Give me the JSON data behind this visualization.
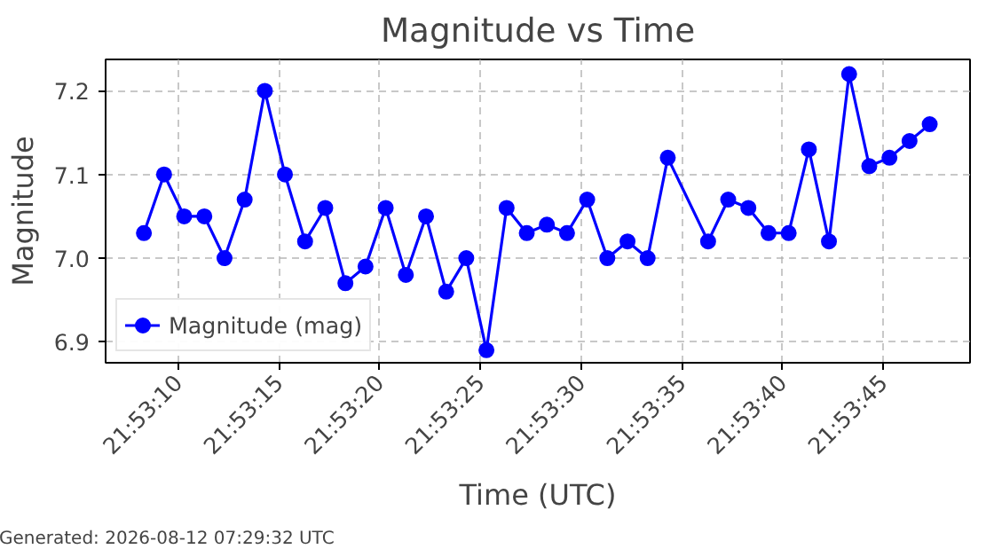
{
  "chart_data": {
    "type": "line",
    "title": "Magnitude vs Time",
    "xlabel": "Time (UTC)",
    "ylabel": "Magnitude",
    "x": [
      21.885639,
      21.885917,
      21.886194,
      21.886472,
      21.88675,
      21.887028,
      21.887306,
      21.887583,
      21.887861,
      21.888139,
      21.888417,
      21.888694,
      21.888972,
      21.88925,
      21.889528,
      21.889806,
      21.890083,
      21.890361,
      21.890639,
      21.890917,
      21.891194,
      21.891472,
      21.89175,
      21.892028,
      21.892306,
      21.892583,
      21.892861,
      21.893417,
      21.893694,
      21.893972,
      21.89425,
      21.894528,
      21.894806,
      21.895083,
      21.895361,
      21.895639,
      21.895917,
      21.896194,
      21.896472
    ],
    "series": [
      {
        "name": "Magnitude (mag)",
        "color": "#0000ff",
        "values": [
          7.03,
          7.1,
          7.05,
          7.05,
          7.0,
          7.07,
          7.2,
          7.1,
          7.02,
          7.06,
          6.97,
          6.99,
          7.06,
          6.98,
          7.05,
          6.96,
          7.0,
          6.89,
          7.06,
          7.03,
          7.04,
          7.03,
          7.07,
          7.0,
          7.02,
          7.0,
          7.12,
          7.02,
          7.07,
          7.06,
          7.03,
          7.03,
          7.13,
          7.02,
          7.22,
          7.11,
          7.12,
          7.14,
          7.16
        ]
      }
    ],
    "xlim": [
      21.885111,
      21.897028
    ],
    "ylim": [
      6.875,
      7.2375
    ],
    "xticks": [
      {
        "value": 21.886111,
        "label": "21:53:10"
      },
      {
        "value": 21.8875,
        "label": "21:53:15"
      },
      {
        "value": 21.888889,
        "label": "21:53:20"
      },
      {
        "value": 21.890278,
        "label": "21:53:25"
      },
      {
        "value": 21.891667,
        "label": "21:53:30"
      },
      {
        "value": 21.893056,
        "label": "21:53:35"
      },
      {
        "value": 21.894444,
        "label": "21:53:40"
      },
      {
        "value": 21.895833,
        "label": "21:53:45"
      }
    ],
    "yticks": [
      {
        "value": 6.9,
        "label": "6.9"
      },
      {
        "value": 7.0,
        "label": "7.0"
      },
      {
        "value": 7.1,
        "label": "7.1"
      },
      {
        "value": 7.2,
        "label": "7.2"
      }
    ],
    "grid": true,
    "legend": "bottom left",
    "marker": "circle",
    "line_style": "solid",
    "annotations": [
      "Generated: 2026-08-12 07:29:32 UTC"
    ]
  }
}
